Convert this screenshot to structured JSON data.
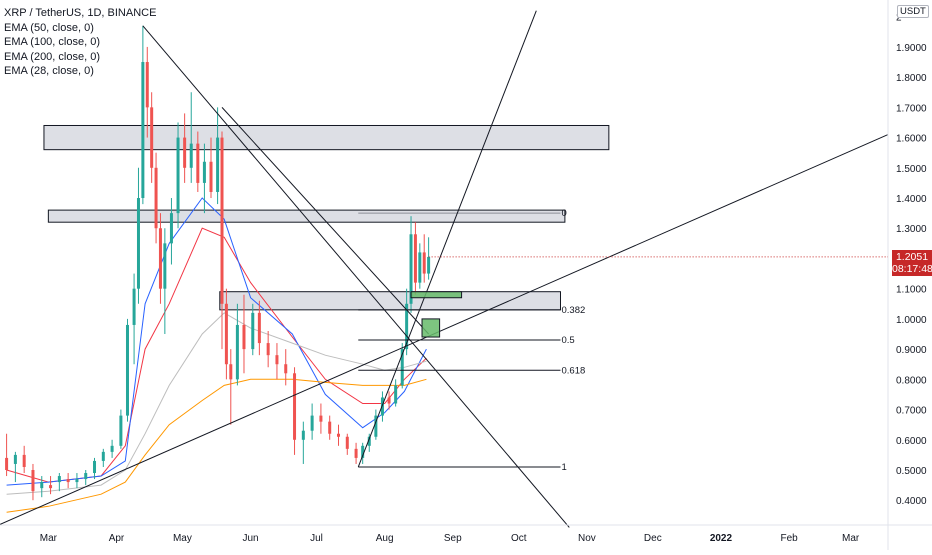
{
  "header": {
    "symbol_line": "XRP / TetherUS, 1D, BINANCE",
    "indicators": [
      "EMA (50, close, 0)",
      "EMA (100, close, 0)",
      "EMA (200, close, 0)",
      "EMA (28, close, 0)"
    ]
  },
  "price_scale": {
    "unit_label": "USDT",
    "current_price": "1.2051",
    "countdown": "08:17:48"
  },
  "fib_levels": [
    "0",
    "0.382",
    "0.5",
    "0.618",
    "1"
  ],
  "colors": {
    "up": "#26a69a",
    "down": "#ef5350",
    "ema28": "#f23645",
    "ema50": "#2962ff",
    "ema100": "#bdbdbd",
    "ema200": "#ff9800",
    "badge": "#c62828"
  },
  "chart_data": {
    "type": "candlestick",
    "title": "XRP / TetherUS, 1D, BINANCE",
    "ylim": [
      0.32,
      2.0
    ],
    "y_ticks": [
      "2",
      "1.9000",
      "1.8000",
      "1.7000",
      "1.6000",
      "1.5000",
      "1.4000",
      "1.3000",
      "1.2000",
      "1.1000",
      "1.0000",
      "0.9000",
      "0.8000",
      "0.7000",
      "0.6000",
      "0.5000",
      "0.4000"
    ],
    "x_ticks": [
      "Mar",
      "Apr",
      "May",
      "Jun",
      "Jul",
      "Aug",
      "Sep",
      "Oct",
      "Nov",
      "Dec",
      "2022",
      "Feb",
      "Mar"
    ],
    "x_range": [
      "2021-02-07",
      "2022-03-18"
    ],
    "series": [
      {
        "name": "EMA (28, close, 0)",
        "x": [
          "2021-02-10",
          "2021-03-01",
          "2021-03-25",
          "2021-04-05",
          "2021-04-14",
          "2021-04-25",
          "2021-05-10",
          "2021-05-20",
          "2021-06-01",
          "2021-06-20",
          "2021-07-05",
          "2021-07-22",
          "2021-08-01",
          "2021-08-10",
          "2021-08-20"
        ],
        "values": [
          0.5,
          0.46,
          0.48,
          0.58,
          0.9,
          1.05,
          1.3,
          1.27,
          1.12,
          0.94,
          0.8,
          0.72,
          0.72,
          0.8,
          0.87
        ]
      },
      {
        "name": "EMA (50, close, 0)",
        "x": [
          "2021-02-10",
          "2021-03-01",
          "2021-03-25",
          "2021-04-05",
          "2021-04-14",
          "2021-04-25",
          "2021-05-10",
          "2021-05-20",
          "2021-06-01",
          "2021-06-20",
          "2021-07-05",
          "2021-07-22",
          "2021-08-01",
          "2021-08-10",
          "2021-08-20"
        ],
        "values": [
          0.45,
          0.46,
          0.48,
          0.53,
          1.05,
          1.25,
          1.4,
          1.33,
          1.07,
          0.95,
          0.75,
          0.64,
          0.69,
          0.76,
          0.9
        ]
      },
      {
        "name": "EMA (100, close, 0)",
        "x": [
          "2021-02-10",
          "2021-03-01",
          "2021-03-25",
          "2021-04-05",
          "2021-04-14",
          "2021-04-25",
          "2021-05-10",
          "2021-05-20",
          "2021-06-01",
          "2021-06-20",
          "2021-07-05",
          "2021-07-22",
          "2021-08-01",
          "2021-08-10",
          "2021-08-20"
        ],
        "values": [
          0.42,
          0.43,
          0.45,
          0.5,
          0.62,
          0.78,
          0.95,
          1.02,
          0.97,
          0.92,
          0.88,
          0.85,
          0.83,
          0.84,
          0.86
        ]
      },
      {
        "name": "EMA (200, close, 0)",
        "x": [
          "2021-02-10",
          "2021-03-01",
          "2021-03-25",
          "2021-04-05",
          "2021-04-14",
          "2021-04-25",
          "2021-05-10",
          "2021-05-20",
          "2021-06-01",
          "2021-06-20",
          "2021-07-05",
          "2021-07-22",
          "2021-08-01",
          "2021-08-10",
          "2021-08-20"
        ],
        "values": [
          0.36,
          0.38,
          0.42,
          0.46,
          0.55,
          0.65,
          0.73,
          0.78,
          0.8,
          0.8,
          0.79,
          0.78,
          0.78,
          0.78,
          0.8
        ]
      }
    ],
    "candles": [
      {
        "x": "2021-02-10",
        "o": 0.54,
        "h": 0.62,
        "l": 0.48,
        "c": 0.5
      },
      {
        "x": "2021-02-14",
        "o": 0.52,
        "h": 0.56,
        "l": 0.46,
        "c": 0.55
      },
      {
        "x": "2021-02-18",
        "o": 0.55,
        "h": 0.58,
        "l": 0.49,
        "c": 0.51
      },
      {
        "x": "2021-02-22",
        "o": 0.5,
        "h": 0.52,
        "l": 0.4,
        "c": 0.43
      },
      {
        "x": "2021-02-26",
        "o": 0.44,
        "h": 0.48,
        "l": 0.41,
        "c": 0.46
      },
      {
        "x": "2021-03-02",
        "o": 0.45,
        "h": 0.48,
        "l": 0.42,
        "c": 0.44
      },
      {
        "x": "2021-03-06",
        "o": 0.46,
        "h": 0.49,
        "l": 0.43,
        "c": 0.48
      },
      {
        "x": "2021-03-10",
        "o": 0.47,
        "h": 0.49,
        "l": 0.44,
        "c": 0.46
      },
      {
        "x": "2021-03-14",
        "o": 0.46,
        "h": 0.49,
        "l": 0.44,
        "c": 0.47
      },
      {
        "x": "2021-03-18",
        "o": 0.47,
        "h": 0.5,
        "l": 0.45,
        "c": 0.49
      },
      {
        "x": "2021-03-22",
        "o": 0.49,
        "h": 0.54,
        "l": 0.47,
        "c": 0.53
      },
      {
        "x": "2021-03-26",
        "o": 0.53,
        "h": 0.57,
        "l": 0.51,
        "c": 0.56
      },
      {
        "x": "2021-03-30",
        "o": 0.56,
        "h": 0.6,
        "l": 0.54,
        "c": 0.58
      },
      {
        "x": "2021-04-03",
        "o": 0.58,
        "h": 0.7,
        "l": 0.57,
        "c": 0.68
      },
      {
        "x": "2021-04-06",
        "o": 0.68,
        "h": 1.0,
        "l": 0.66,
        "c": 0.98
      },
      {
        "x": "2021-04-09",
        "o": 0.98,
        "h": 1.15,
        "l": 0.85,
        "c": 1.1
      },
      {
        "x": "2021-04-11",
        "o": 1.1,
        "h": 1.5,
        "l": 1.05,
        "c": 1.4
      },
      {
        "x": "2021-04-13",
        "o": 1.4,
        "h": 1.97,
        "l": 1.38,
        "c": 1.85
      },
      {
        "x": "2021-04-15",
        "o": 1.85,
        "h": 1.9,
        "l": 1.6,
        "c": 1.7
      },
      {
        "x": "2021-04-17",
        "o": 1.7,
        "h": 1.75,
        "l": 1.45,
        "c": 1.5
      },
      {
        "x": "2021-04-19",
        "o": 1.5,
        "h": 1.55,
        "l": 1.25,
        "c": 1.3
      },
      {
        "x": "2021-04-21",
        "o": 1.3,
        "h": 1.35,
        "l": 1.05,
        "c": 1.1
      },
      {
        "x": "2021-04-23",
        "o": 1.1,
        "h": 1.3,
        "l": 0.95,
        "c": 1.25
      },
      {
        "x": "2021-04-26",
        "o": 1.25,
        "h": 1.4,
        "l": 1.18,
        "c": 1.35
      },
      {
        "x": "2021-04-29",
        "o": 1.35,
        "h": 1.65,
        "l": 1.3,
        "c": 1.6
      },
      {
        "x": "2021-05-02",
        "o": 1.6,
        "h": 1.68,
        "l": 1.45,
        "c": 1.5
      },
      {
        "x": "2021-05-05",
        "o": 1.5,
        "h": 1.75,
        "l": 1.45,
        "c": 1.58
      },
      {
        "x": "2021-05-08",
        "o": 1.58,
        "h": 1.62,
        "l": 1.42,
        "c": 1.45
      },
      {
        "x": "2021-05-11",
        "o": 1.45,
        "h": 1.58,
        "l": 1.35,
        "c": 1.52
      },
      {
        "x": "2021-05-14",
        "o": 1.52,
        "h": 1.6,
        "l": 1.4,
        "c": 1.42
      },
      {
        "x": "2021-05-17",
        "o": 1.42,
        "h": 1.7,
        "l": 1.38,
        "c": 1.6
      },
      {
        "x": "2021-05-19",
        "o": 1.6,
        "h": 1.62,
        "l": 0.9,
        "c": 1.05
      },
      {
        "x": "2021-05-21",
        "o": 1.05,
        "h": 1.1,
        "l": 0.8,
        "c": 0.85
      },
      {
        "x": "2021-05-23",
        "o": 0.85,
        "h": 0.9,
        "l": 0.65,
        "c": 0.8
      },
      {
        "x": "2021-05-26",
        "o": 0.8,
        "h": 1.05,
        "l": 0.78,
        "c": 0.98
      },
      {
        "x": "2021-05-29",
        "o": 0.98,
        "h": 1.08,
        "l": 0.82,
        "c": 0.9
      },
      {
        "x": "2021-06-02",
        "o": 0.9,
        "h": 1.05,
        "l": 0.88,
        "c": 1.02
      },
      {
        "x": "2021-06-05",
        "o": 1.02,
        "h": 1.06,
        "l": 0.88,
        "c": 0.92
      },
      {
        "x": "2021-06-09",
        "o": 0.92,
        "h": 0.96,
        "l": 0.84,
        "c": 0.88
      },
      {
        "x": "2021-06-13",
        "o": 0.88,
        "h": 0.92,
        "l": 0.8,
        "c": 0.85
      },
      {
        "x": "2021-06-17",
        "o": 0.85,
        "h": 0.9,
        "l": 0.78,
        "c": 0.82
      },
      {
        "x": "2021-06-21",
        "o": 0.82,
        "h": 0.84,
        "l": 0.55,
        "c": 0.6
      },
      {
        "x": "2021-06-25",
        "o": 0.6,
        "h": 0.66,
        "l": 0.52,
        "c": 0.63
      },
      {
        "x": "2021-06-29",
        "o": 0.63,
        "h": 0.72,
        "l": 0.6,
        "c": 0.68
      },
      {
        "x": "2021-07-03",
        "o": 0.68,
        "h": 0.72,
        "l": 0.62,
        "c": 0.66
      },
      {
        "x": "2021-07-07",
        "o": 0.66,
        "h": 0.68,
        "l": 0.6,
        "c": 0.62
      },
      {
        "x": "2021-07-11",
        "o": 0.62,
        "h": 0.65,
        "l": 0.58,
        "c": 0.61
      },
      {
        "x": "2021-07-15",
        "o": 0.61,
        "h": 0.62,
        "l": 0.55,
        "c": 0.57
      },
      {
        "x": "2021-07-19",
        "o": 0.57,
        "h": 0.59,
        "l": 0.52,
        "c": 0.54
      },
      {
        "x": "2021-07-22",
        "o": 0.54,
        "h": 0.59,
        "l": 0.52,
        "c": 0.58
      },
      {
        "x": "2021-07-25",
        "o": 0.58,
        "h": 0.62,
        "l": 0.56,
        "c": 0.61
      },
      {
        "x": "2021-07-28",
        "o": 0.61,
        "h": 0.7,
        "l": 0.6,
        "c": 0.68
      },
      {
        "x": "2021-07-31",
        "o": 0.68,
        "h": 0.76,
        "l": 0.66,
        "c": 0.74
      },
      {
        "x": "2021-08-03",
        "o": 0.74,
        "h": 0.76,
        "l": 0.7,
        "c": 0.72
      },
      {
        "x": "2021-08-06",
        "o": 0.72,
        "h": 0.8,
        "l": 0.71,
        "c": 0.78
      },
      {
        "x": "2021-08-09",
        "o": 0.78,
        "h": 0.92,
        "l": 0.77,
        "c": 0.9
      },
      {
        "x": "2021-08-11",
        "o": 0.9,
        "h": 1.1,
        "l": 0.88,
        "c": 1.05
      },
      {
        "x": "2021-08-13",
        "o": 1.05,
        "h": 1.34,
        "l": 1.02,
        "c": 1.28
      },
      {
        "x": "2021-08-15",
        "o": 1.28,
        "h": 1.32,
        "l": 1.08,
        "c": 1.12
      },
      {
        "x": "2021-08-17",
        "o": 1.12,
        "h": 1.25,
        "l": 1.1,
        "c": 1.22
      },
      {
        "x": "2021-08-19",
        "o": 1.22,
        "h": 1.28,
        "l": 1.12,
        "c": 1.15
      },
      {
        "x": "2021-08-21",
        "o": 1.15,
        "h": 1.27,
        "l": 1.13,
        "c": 1.2051
      }
    ],
    "horizontal_zones": [
      {
        "x0": "2021-02-27",
        "x1": "2021-11-11",
        "y0": 1.56,
        "y1": 1.64
      },
      {
        "x0": "2021-03-01",
        "x1": "2021-10-22",
        "y0": 1.32,
        "y1": 1.36
      },
      {
        "x0": "2021-05-18",
        "x1": "2021-10-20",
        "y0": 1.03,
        "y1": 1.09
      }
    ],
    "fib_retracement": {
      "x0": "2021-07-20",
      "x1": "2021-10-20",
      "y_start": 1.35,
      "y_end": 0.51,
      "levels": [
        {
          "label": "0",
          "value": 1.35
        },
        {
          "label": "0.382",
          "value": 1.03
        },
        {
          "label": "0.5",
          "value": 0.93
        },
        {
          "label": "0.618",
          "value": 0.83
        },
        {
          "label": "1",
          "value": 0.51
        }
      ]
    },
    "trendlines": [
      {
        "x0": "2021-02-07",
        "y0": 0.32,
        "x1": "2022-03-18",
        "y1": 1.61
      },
      {
        "x0": "2021-04-13",
        "y0": 1.97,
        "x1": "2021-10-24",
        "y1": 0.31
      },
      {
        "x0": "2021-07-20",
        "y0": 0.51,
        "x1": "2021-10-09",
        "y1": 2.02
      },
      {
        "x0": "2021-05-19",
        "y0": 1.7,
        "x1": "2021-08-21",
        "y1": 0.95
      }
    ],
    "markers": [
      {
        "kind": "green-bar",
        "x0": "2021-08-13",
        "x1": "2021-09-05",
        "y0": 1.07,
        "y1": 1.09
      },
      {
        "kind": "green-box",
        "x0": "2021-08-18",
        "x1": "2021-08-26",
        "y0": 0.94,
        "y1": 1.0
      }
    ]
  }
}
